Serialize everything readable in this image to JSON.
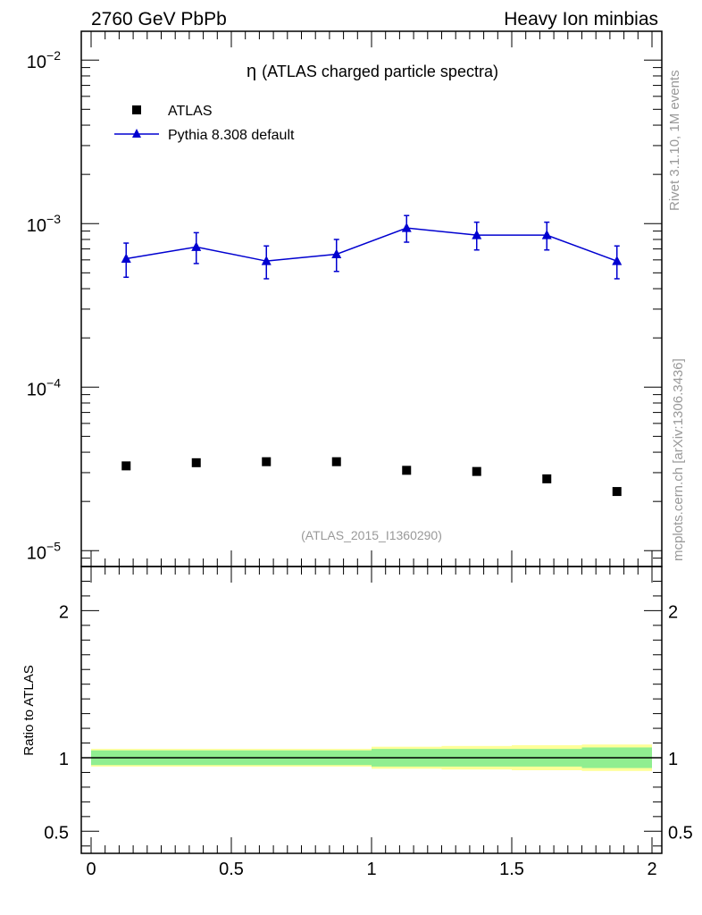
{
  "header": {
    "left": "2760 GeV PbPb",
    "right": "Heavy Ion minbias"
  },
  "side_labels": {
    "rivet": "Rivet 3.1.10,  1M events",
    "mcplots": "mcplots.cern.ch [arXiv:1306.3436]"
  },
  "plot_title_symbol": "η",
  "plot_title_text": "(ATLAS charged particle spectra)",
  "analysis_id": "(ATLAS_2015_I1360290)",
  "legend": {
    "data_label": "ATLAS",
    "mc_label": "Pythia 8.308 default"
  },
  "ratio_ylabel": "Ratio to ATLAS",
  "colors": {
    "data": "#000000",
    "mc": "#0000d0",
    "band_outer": "#ffff99",
    "band_inner": "#90ee90"
  },
  "chart_data": [
    {
      "type": "scatter",
      "scale": "log",
      "title": "η (ATLAS charged particle spectra)",
      "xlim": [
        0,
        2
      ],
      "ylim": [
        8e-06,
        0.015
      ],
      "y_ticks": [
        {
          "value": 1e-05,
          "base": "10",
          "exp": "−5"
        },
        {
          "value": 0.0001,
          "base": "10",
          "exp": "−4"
        },
        {
          "value": 0.001,
          "base": "10",
          "exp": "−3"
        },
        {
          "value": 0.01,
          "base": "10",
          "exp": "−2"
        }
      ],
      "series": [
        {
          "name": "ATLAS",
          "marker": "square",
          "x": [
            0.125,
            0.375,
            0.625,
            0.875,
            1.125,
            1.375,
            1.625,
            1.875
          ],
          "values": [
            3.3e-05,
            3.45e-05,
            3.5e-05,
            3.5e-05,
            3.1e-05,
            3.05e-05,
            2.75e-05,
            2.3e-05
          ]
        },
        {
          "name": "Pythia 8.308 default",
          "marker": "triangle",
          "x": [
            0.125,
            0.375,
            0.625,
            0.875,
            1.125,
            1.375,
            1.625,
            1.875
          ],
          "values": [
            0.00061,
            0.00072,
            0.00059,
            0.00065,
            0.00094,
            0.00085,
            0.00085,
            0.00059
          ],
          "err_low": [
            0.00014,
            0.00015,
            0.00013,
            0.00014,
            0.00017,
            0.00016,
            0.00016,
            0.00013
          ],
          "err_high": [
            0.00015,
            0.00016,
            0.00014,
            0.00015,
            0.00018,
            0.00017,
            0.00017,
            0.00014
          ]
        }
      ]
    },
    {
      "type": "area",
      "ylabel": "Ratio to ATLAS",
      "xlim": [
        0,
        2
      ],
      "ylim": [
        0.35,
        2.3
      ],
      "x_ticks": [
        {
          "value": 0,
          "label": "0"
        },
        {
          "value": 0.5,
          "label": "0.5"
        },
        {
          "value": 1,
          "label": "1"
        },
        {
          "value": 1.5,
          "label": "1.5"
        },
        {
          "value": 2,
          "label": "2"
        }
      ],
      "y_ticks": [
        {
          "value": 0.5,
          "label": "0.5"
        },
        {
          "value": 1,
          "label": "1"
        },
        {
          "value": 2,
          "label": "2"
        }
      ],
      "bins": [
        0,
        0.25,
        0.5,
        0.75,
        1.0,
        1.25,
        1.5,
        1.75,
        2.0
      ],
      "band_inner": [
        0.05,
        0.05,
        0.05,
        0.05,
        0.06,
        0.06,
        0.06,
        0.07
      ],
      "band_outer": [
        0.06,
        0.06,
        0.06,
        0.06,
        0.075,
        0.08,
        0.085,
        0.09
      ],
      "reference": 1
    }
  ]
}
